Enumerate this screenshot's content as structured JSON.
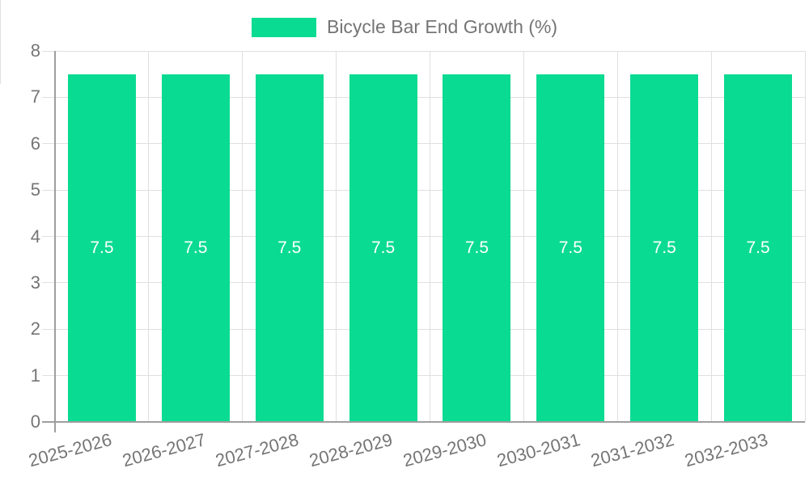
{
  "chart_data": {
    "type": "bar",
    "title": "Bicycle Bar End Growth (%)",
    "legend": {
      "label": "Bicycle Bar End Growth (%)",
      "position": "top"
    },
    "categories": [
      "2025-2026",
      "2026-2027",
      "2027-2028",
      "2028-2029",
      "2029-2030",
      "2030-2031",
      "2031-2032",
      "2032-2033"
    ],
    "series": [
      {
        "name": "Bicycle Bar End Growth (%)",
        "values": [
          7.5,
          7.5,
          7.5,
          7.5,
          7.5,
          7.5,
          7.5,
          7.5
        ],
        "value_labels": [
          "7.5",
          "7.5",
          "7.5",
          "7.5",
          "7.5",
          "7.5",
          "7.5",
          "7.5"
        ]
      }
    ],
    "xlabel": "",
    "ylabel": "",
    "ylim": [
      0,
      8
    ],
    "yticks": [
      0,
      1,
      2,
      3,
      4,
      5,
      6,
      7,
      8
    ],
    "grid": true,
    "value_labels_inside_bars": true,
    "colors": {
      "bar": "#0adb92",
      "axis": "#9e9e9e",
      "grid": "#e0e0e0",
      "tick_label": "#757575",
      "title": "#757575",
      "value_label": "#ffffff",
      "background": "#ffffff"
    }
  }
}
